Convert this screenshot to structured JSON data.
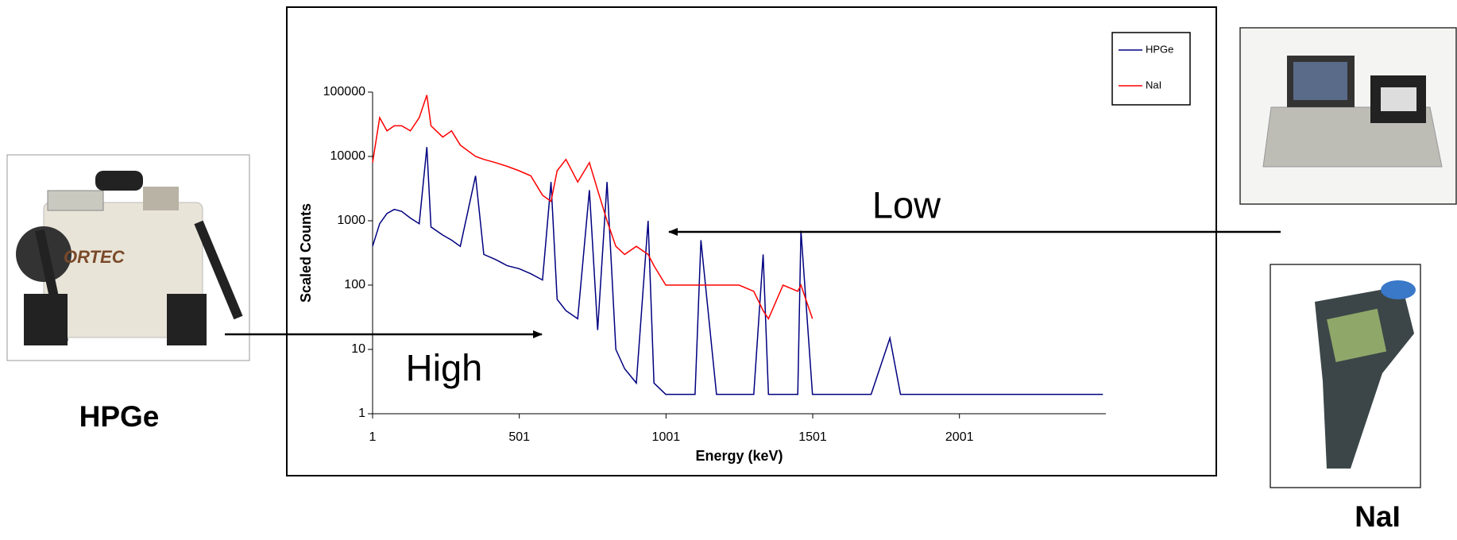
{
  "chart_data": {
    "type": "line",
    "xlabel": "Energy (keV)",
    "ylabel": "Scaled Counts",
    "log_y": true,
    "grid": false,
    "legend": "top-right",
    "xlim": [
      1,
      2500
    ],
    "xticks": [
      1,
      501,
      1001,
      1501,
      2001
    ],
    "ylim": [
      1,
      100000
    ],
    "yticks": [
      1,
      10,
      100,
      1000,
      10000,
      100000
    ],
    "x": [
      1,
      25,
      50,
      75,
      100,
      130,
      160,
      186,
      200,
      240,
      270,
      300,
      352,
      380,
      420,
      460,
      500,
      540,
      580,
      609,
      630,
      660,
      700,
      740,
      768,
      800,
      830,
      860,
      900,
      940,
      960,
      1000,
      1050,
      1100,
      1120,
      1173,
      1200,
      1250,
      1300,
      1332,
      1350,
      1400,
      1450,
      1461,
      1500,
      1550,
      1600,
      1700,
      1764,
      1800,
      1900,
      2000,
      2100,
      2200,
      2300,
      2400,
      2490
    ],
    "series": [
      {
        "name": "HPGe",
        "color": "#000080",
        "values": [
          400,
          900,
          1300,
          1500,
          1400,
          1100,
          900,
          14000,
          800,
          600,
          500,
          400,
          5000,
          300,
          250,
          200,
          180,
          150,
          120,
          4000,
          60,
          40,
          30,
          3000,
          20,
          4000,
          10,
          5,
          3,
          1000,
          3,
          2,
          2,
          2,
          500,
          2,
          2,
          2,
          2,
          300,
          2,
          2,
          2,
          700,
          2,
          2,
          2,
          2,
          15,
          2,
          2,
          2,
          2,
          2,
          2,
          2,
          2
        ]
      },
      {
        "name": "NaI",
        "color": "#ff0000",
        "values": [
          8000,
          40000,
          25000,
          30000,
          30000,
          25000,
          40000,
          90000,
          30000,
          20000,
          25000,
          15000,
          10000,
          9000,
          8000,
          7000,
          6000,
          5000,
          2500,
          2000,
          6000,
          9000,
          4000,
          8000,
          3000,
          1000,
          400,
          300,
          400,
          300,
          200,
          100,
          100,
          100,
          100,
          100,
          100,
          100,
          80,
          40,
          30,
          100,
          80,
          100,
          30,
          null,
          null,
          null,
          null,
          null,
          null,
          null,
          null,
          null,
          null,
          null,
          null
        ]
      }
    ],
    "annotations": [
      "Low",
      "High"
    ]
  },
  "captions": {
    "left_device": "HPGe",
    "right_device": "NaI"
  }
}
